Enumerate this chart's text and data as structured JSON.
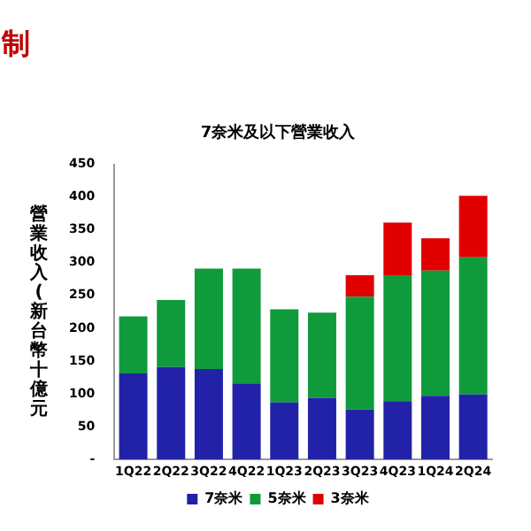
{
  "chart_data": {
    "type": "bar",
    "title": "7奈米及以下營業收入",
    "ylabel": "營業收入(新台幣十億元",
    "annotations": [
      "制"
    ],
    "categories": [
      "1Q22",
      "2Q22",
      "3Q22",
      "4Q22",
      "1Q23",
      "2Q23",
      "3Q23",
      "4Q23",
      "1Q24",
      "2Q24"
    ],
    "series": [
      {
        "name": "7奈米",
        "color": "#2222a8",
        "values": [
          131,
          141,
          138,
          116,
          87,
          94,
          76,
          89,
          97,
          99
        ]
      },
      {
        "name": "5奈米",
        "color": "#0f9a3c",
        "values": [
          87,
          102,
          153,
          175,
          142,
          130,
          172,
          192,
          191,
          209
        ]
      },
      {
        "name": "3奈米",
        "color": "#e00000",
        "values": [
          null,
          null,
          null,
          null,
          null,
          null,
          33,
          80,
          49,
          94
        ]
      }
    ],
    "stacked": true,
    "ylim": [
      0,
      450
    ],
    "yticks": [
      {
        "value": 0,
        "label": "-"
      },
      50,
      100,
      150,
      200,
      250,
      300,
      350,
      400,
      450
    ],
    "grid": false,
    "legend": "bottom"
  }
}
